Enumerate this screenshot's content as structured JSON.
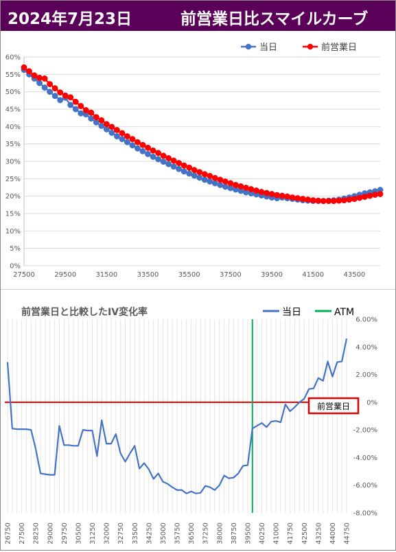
{
  "header": {
    "date": "2024年7月23日",
    "title": "前営業日比スマイルカーブ"
  },
  "colors": {
    "header_bg": "#5b0058",
    "today": "#4472c4",
    "prev": "#ff0000",
    "atm": "#00b050",
    "zero_line": "#e00000",
    "label_box": "#e00000"
  },
  "chart_data": [
    {
      "type": "line",
      "title": "",
      "legend": {
        "position": "top-right",
        "entries": [
          "当日",
          "前営業日"
        ]
      },
      "ylim": [
        0,
        60
      ],
      "y_ticks": [
        "0%",
        "5%",
        "10%",
        "15%",
        "20%",
        "25%",
        "30%",
        "35%",
        "40%",
        "45%",
        "50%",
        "55%",
        "60%"
      ],
      "xlim": [
        27500,
        44750
      ],
      "x_ticks": [
        "27500",
        "29500",
        "31500",
        "33500",
        "35500",
        "37500",
        "39500",
        "41500",
        "43500"
      ],
      "x": [
        27500,
        27750,
        28000,
        28250,
        28500,
        28750,
        29000,
        29250,
        29500,
        29750,
        30000,
        30250,
        30500,
        30750,
        31000,
        31250,
        31500,
        31750,
        32000,
        32250,
        32500,
        32750,
        33000,
        33250,
        33500,
        33750,
        34000,
        34250,
        34500,
        34750,
        35000,
        35250,
        35500,
        35750,
        36000,
        36250,
        36500,
        36750,
        37000,
        37250,
        37500,
        37750,
        38000,
        38250,
        38500,
        38750,
        39000,
        39250,
        39500,
        39750,
        40000,
        40250,
        40500,
        40750,
        41000,
        41250,
        41500,
        41750,
        42000,
        42250,
        42500,
        42750,
        43000,
        43250,
        43500,
        43750,
        44000,
        44250,
        44500,
        44750
      ],
      "series": [
        {
          "name": "当日",
          "color": "#4472c4",
          "values": [
            56.3,
            55.0,
            53.8,
            52.5,
            51.2,
            50.0,
            48.8,
            47.6,
            48.3,
            46.2,
            45.0,
            43.8,
            43.5,
            42.3,
            41.2,
            40.2,
            39.2,
            38.2,
            37.2,
            36.4,
            35.5,
            34.6,
            33.7,
            32.9,
            32.1,
            31.3,
            30.6,
            29.9,
            29.2,
            28.5,
            27.8,
            27.1,
            26.5,
            25.9,
            25.3,
            24.7,
            24.2,
            23.7,
            23.2,
            22.7,
            22.3,
            21.9,
            21.5,
            21.1,
            20.8,
            20.5,
            20.2,
            19.9,
            19.6,
            19.4,
            19.6,
            19.4,
            19.2,
            19.0,
            18.8,
            18.7,
            18.6,
            18.6,
            18.6,
            18.7,
            18.8,
            19.0,
            19.3,
            19.6,
            20.0,
            20.4,
            20.8,
            21.1,
            21.4,
            21.8
          ]
        },
        {
          "name": "前営業日",
          "color": "#ff0000",
          "values": [
            57.0,
            55.9,
            54.7,
            54.0,
            53.8,
            52.2,
            51.0,
            49.8,
            48.9,
            48.4,
            47.1,
            45.9,
            44.7,
            44.0,
            42.7,
            41.8,
            40.7,
            39.9,
            39.0,
            38.1,
            37.2,
            36.4,
            35.5,
            34.7,
            33.9,
            33.1,
            32.4,
            31.6,
            30.9,
            30.2,
            29.5,
            28.8,
            28.2,
            27.5,
            26.9,
            26.3,
            25.8,
            25.2,
            24.7,
            24.2,
            23.7,
            23.2,
            22.8,
            22.4,
            22.0,
            21.6,
            21.2,
            20.9,
            20.6,
            20.3,
            20.1,
            19.9,
            19.6,
            19.4,
            19.2,
            19.0,
            18.8,
            18.7,
            18.6,
            18.6,
            18.6,
            18.7,
            18.8,
            19.0,
            19.2,
            19.5,
            19.8,
            20.1,
            20.4,
            20.6
          ]
        }
      ]
    },
    {
      "type": "line",
      "title": "前営業日と比較したIV変化率",
      "legend": {
        "position": "top-right",
        "entries": [
          "当日",
          "ATM"
        ]
      },
      "ylim": [
        -8,
        6
      ],
      "y_ticks": [
        "6.00%",
        "4.00%",
        "2.00%",
        "0%",
        "-2.00%",
        "-4.00%",
        "-6.00%",
        "-8.00%"
      ],
      "xlim": [
        26750,
        44750
      ],
      "x_ticks": [
        "26750",
        "27500",
        "28250",
        "29000",
        "29750",
        "30500",
        "31250",
        "32000",
        "32750",
        "33500",
        "34250",
        "35000",
        "35750",
        "36500",
        "37250",
        "38000",
        "38750",
        "39500",
        "40250",
        "41000",
        "41750",
        "42500",
        "43250",
        "44000",
        "44750"
      ],
      "atm": 39750,
      "annotation": "前営業日",
      "x": [
        26750,
        27000,
        27250,
        27500,
        27750,
        28000,
        28250,
        28500,
        28750,
        29000,
        29250,
        29500,
        29750,
        30000,
        30250,
        30500,
        30750,
        31000,
        31250,
        31500,
        31750,
        32000,
        32250,
        32500,
        32750,
        33000,
        33250,
        33500,
        33750,
        34000,
        34250,
        34500,
        34750,
        35000,
        35250,
        35500,
        35750,
        36000,
        36250,
        36500,
        36750,
        37000,
        37250,
        37500,
        37750,
        38000,
        38250,
        38500,
        38750,
        39000,
        39250,
        39500,
        39750,
        40000,
        40250,
        40500,
        40750,
        41000,
        41250,
        41500,
        41750,
        42000,
        42250,
        42500,
        42750,
        43000,
        43250,
        43500,
        43750,
        44000,
        44250,
        44500,
        44750
      ],
      "series": [
        {
          "name": "当日",
          "color": "#4472c4",
          "values": [
            2.9,
            -1.9,
            -1.95,
            -1.95,
            -1.95,
            -2.0,
            -3.4,
            -5.15,
            -5.2,
            -5.25,
            -5.25,
            -1.7,
            -3.1,
            -3.1,
            -3.15,
            -3.15,
            -2.0,
            -2.05,
            -2.05,
            -3.9,
            -1.3,
            -3.0,
            -3.0,
            -2.3,
            -3.7,
            -4.3,
            -3.7,
            -3.15,
            -4.8,
            -4.4,
            -4.85,
            -5.55,
            -5.15,
            -5.75,
            -5.9,
            -6.15,
            -6.35,
            -6.35,
            -6.6,
            -6.45,
            -6.6,
            -6.55,
            -6.05,
            -6.15,
            -6.35,
            -6.0,
            -5.3,
            -5.5,
            -5.45,
            -5.15,
            -4.6,
            -4.55,
            -1.9,
            -1.7,
            -1.5,
            -1.8,
            -1.4,
            -1.35,
            -1.45,
            -0.15,
            -0.65,
            -0.35,
            0.0,
            0.25,
            0.95,
            1.0,
            1.75,
            1.55,
            2.95,
            1.85,
            2.9,
            2.95,
            4.6
          ]
        }
      ]
    }
  ]
}
